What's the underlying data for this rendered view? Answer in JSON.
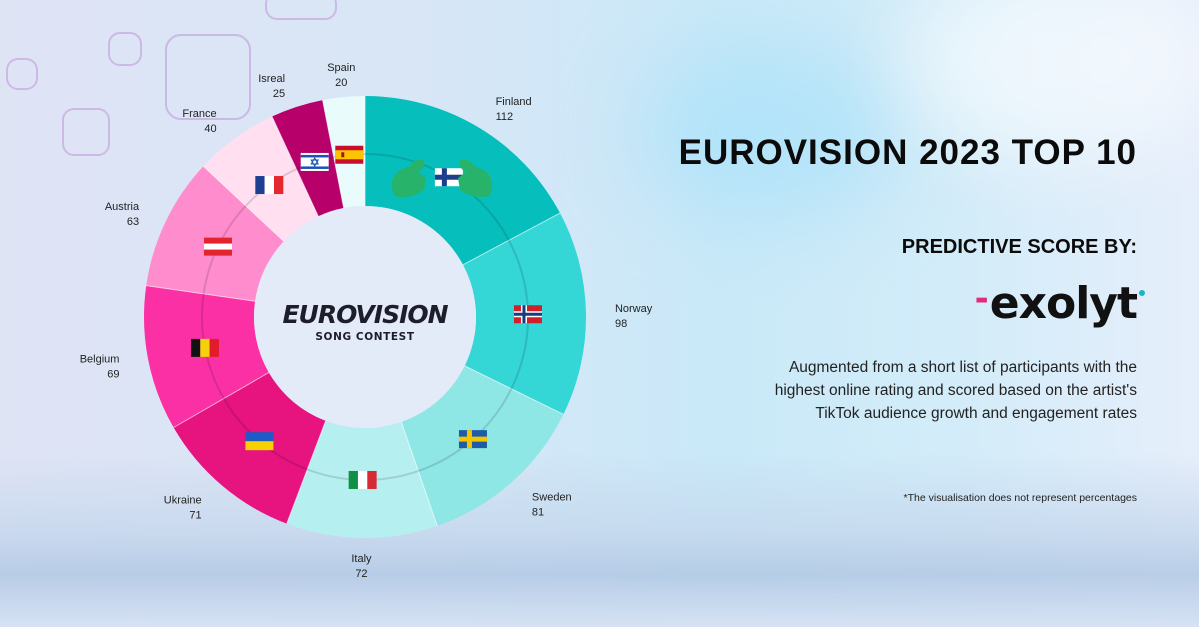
{
  "header": {
    "title": "EUROVISION 2023 TOP 10",
    "subtitle": "PREDICTIVE SCORE BY:",
    "brand": "exolyt",
    "description": "Augmented from a short list of participants with the highest online rating and scored based on the artist's TikTok audience growth and engagement rates",
    "footnote": "*The visualisation does not represent percentages"
  },
  "center_logo": {
    "line1": "EUROVISION",
    "line2": "SONG CONTEST"
  },
  "colors": {
    "brand_accent": "#e02a7a",
    "brand_dot": "#19b5c9"
  },
  "chart_data": {
    "type": "pie",
    "variant": "donut",
    "categories": [
      "Finland",
      "Norway",
      "Sweden",
      "Italy",
      "Ukraine",
      "Belgium",
      "Austria",
      "France",
      "Isreal",
      "Spain"
    ],
    "values": [
      112,
      98,
      81,
      72,
      71,
      69,
      63,
      40,
      25,
      20
    ],
    "colors": [
      "#06bfbd",
      "#35d6d6",
      "#8ee6e5",
      "#b6eff0",
      "#e7137f",
      "#fb30a5",
      "#ff8ccd",
      "#ffdff0",
      "#b8006a",
      "#e9fbfb"
    ],
    "icons": [
      "finland-flag-icon",
      "norway-flag-icon",
      "sweden-flag-icon",
      "italy-flag-icon",
      "ukraine-flag-icon",
      "belgium-flag-icon",
      "austria-flag-icon",
      "france-flag-icon",
      "israel-flag-icon",
      "spain-flag-icon"
    ]
  }
}
